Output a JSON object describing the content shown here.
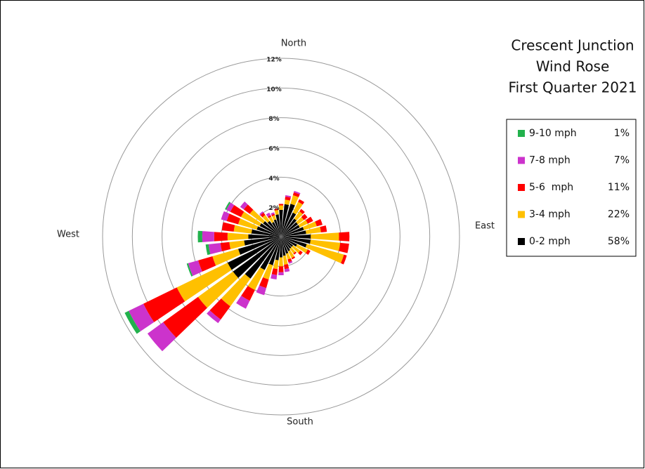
{
  "chart_data": {
    "type": "wind_rose",
    "title": [
      "Crescent Junction",
      "Wind Rose",
      "First Quarter 2021"
    ],
    "direction_labels": [
      "North",
      "East",
      "South",
      "West"
    ],
    "x": [
      0,
      10,
      20,
      30,
      40,
      50,
      60,
      70,
      80,
      90,
      100,
      110,
      120,
      130,
      140,
      150,
      160,
      170,
      180,
      190,
      200,
      210,
      220,
      230,
      240,
      250,
      260,
      270,
      280,
      290,
      300,
      310,
      320,
      330,
      340,
      350
    ],
    "ylim": [
      0,
      12
    ],
    "yticks": [
      {
        "value": 0,
        "label": "0%"
      },
      {
        "value": 2,
        "label": "2%"
      },
      {
        "value": 4,
        "label": "4%"
      },
      {
        "value": 6,
        "label": "6%"
      },
      {
        "value": 8,
        "label": "8%"
      },
      {
        "value": 10,
        "label": "10%"
      },
      {
        "value": 12,
        "label": "12%"
      }
    ],
    "grid": true,
    "legend": "right",
    "series": [
      {
        "name": "0-2 mph",
        "color": "#000000",
        "total": {
          "value": 58,
          "label": "58%"
        },
        "values": [
          1.8,
          2.2,
          2.3,
          1.8,
          1.5,
          1.4,
          1.4,
          1.6,
          1.7,
          2.0,
          2.0,
          1.8,
          1.2,
          1.0,
          1.0,
          1.1,
          1.2,
          1.3,
          1.4,
          1.6,
          2.0,
          2.5,
          3.5,
          4.0,
          4.0,
          3.0,
          2.5,
          2.2,
          2.0,
          1.7,
          1.6,
          1.5,
          1.3,
          1.1,
          1.2,
          1.5
        ]
      },
      {
        "name": "3-4 mph",
        "color": "#ffc000",
        "total": {
          "value": 22,
          "label": "22%"
        },
        "values": [
          0.3,
          0.3,
          0.6,
          0.8,
          0.6,
          0.5,
          0.6,
          0.9,
          1.0,
          1.9,
          2.0,
          2.6,
          0.8,
          0.6,
          0.4,
          0.5,
          0.4,
          0.6,
          0.6,
          0.6,
          1.0,
          1.5,
          2.3,
          2.9,
          3.8,
          1.8,
          1.0,
          1.4,
          1.2,
          1.3,
          1.4,
          1.1,
          0.5,
          0.4,
          0.3,
          0.3
        ]
      },
      {
        "name": "5-6  mph",
        "color": "#ff0000",
        "total": {
          "value": 11,
          "label": "11%"
        },
        "values": [
          0.1,
          0.2,
          0.2,
          0.2,
          0.2,
          0.3,
          0.4,
          0.4,
          0.4,
          0.7,
          0.6,
          0.2,
          0.2,
          0.2,
          0.1,
          0.1,
          0.2,
          0.3,
          0.4,
          0.4,
          0.6,
          0.8,
          1.1,
          2.9,
          2.5,
          1.0,
          0.6,
          0.9,
          0.8,
          0.8,
          0.8,
          0.5,
          0.2,
          0.1,
          0.1,
          0.1
        ]
      },
      {
        "name": "7-8 mph",
        "color": "#cc33cc",
        "total": {
          "value": 7,
          "label": "7%"
        },
        "values": [
          0,
          0.1,
          0.1,
          0,
          0,
          0,
          0,
          0,
          0,
          0,
          0,
          0,
          0,
          0,
          0,
          0,
          0.1,
          0.2,
          0.2,
          0.3,
          0.5,
          0.6,
          0.3,
          1.3,
          1.1,
          0.7,
          0.8,
          0.8,
          0,
          0.4,
          0.3,
          0.3,
          0.1,
          0.2,
          0.1,
          0
        ]
      },
      {
        "name": "9-10 mph",
        "color": "#22b14c",
        "total": {
          "value": 1,
          "label": "1%"
        },
        "values": [
          0,
          0,
          0,
          0,
          0,
          0,
          0,
          0,
          0,
          0,
          0,
          0,
          0,
          0,
          0,
          0,
          0,
          0,
          0,
          0,
          0,
          0,
          0,
          0,
          0.3,
          0.1,
          0.2,
          0.3,
          0,
          0,
          0.1,
          0,
          0,
          0,
          0,
          0
        ]
      }
    ]
  }
}
